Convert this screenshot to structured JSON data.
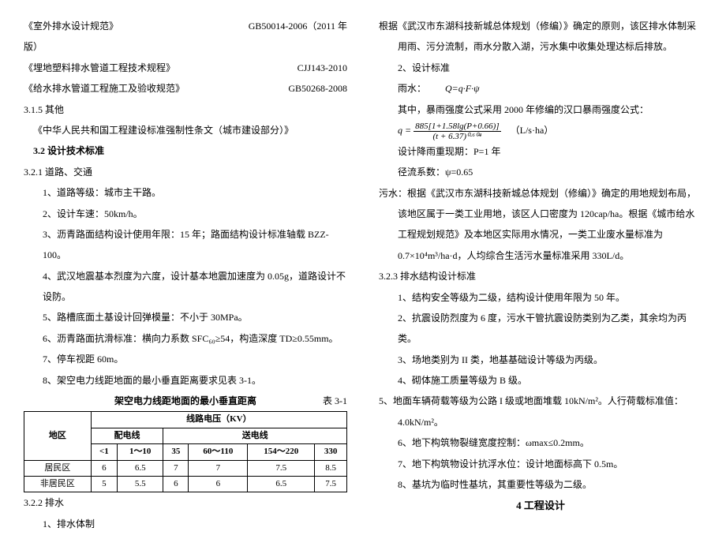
{
  "left": {
    "codes": [
      {
        "name": "《室外排水设计规范》",
        "num": "GB50014-2006（2011 年"
      },
      {
        "name": "版）",
        "num": ""
      },
      {
        "name": "《埋地塑料排水管道工程技术规程》",
        "num": "CJJ143-2010"
      },
      {
        "name": "《给水排水管道工程施工及验收规范》",
        "num": "GB50268-2008"
      }
    ],
    "s315": "3.1.5 其他",
    "s315_item": "《中华人民共和国工程建设标准强制性条文（城市建设部分）》",
    "s32": "3.2 设计技术标准",
    "s321": "3.2.1 道路、交通",
    "road_items": [
      "1、道路等级：城市主干路。",
      "2、设计车速：50km/h。",
      "3、沥青路面结构设计使用年限：15 年；路面结构设计标准轴载 BZZ-100。",
      "4、武汉地震基本烈度为六度，设计基本地震加速度为 0.05g，道路设计不设防。",
      "5、路槽底面土基设计回弹模量：不小于 30MPa。",
      "6、沥青路面抗滑标准：横向力系数 SFC₆₀≥54，构造深度 TD≥0.55mm。",
      "7、停车视距 60m。",
      "8、架空电力线距地面的最小垂直距离要求见表 3-1。"
    ],
    "table_title": "架空电力线距地面的最小垂直距离",
    "table_num": "表 3-1",
    "table": {
      "header_top": "线路电压（KV）",
      "region": "地区",
      "sub1": "配电线",
      "sub2": "送电线",
      "cols": [
        "<1",
        "1～10",
        "35",
        "60～110",
        "154～220",
        "330"
      ],
      "rows": [
        {
          "label": "居民区",
          "vals": [
            "6",
            "6.5",
            "7",
            "7",
            "7.5",
            "8.5"
          ]
        },
        {
          "label": "非居民区",
          "vals": [
            "5",
            "5.5",
            "6",
            "6",
            "6.5",
            "7.5"
          ]
        }
      ]
    },
    "s322": "3.2.2 排水",
    "s322_1": "1、排水体制"
  },
  "right": {
    "p1": "根据《武汉市东湖科技新城总体规划（修编）》确定的原则，该区排水体制采用雨、污分流制，雨水分散入湖，污水集中收集处理达标后排放。",
    "p2": "2、设计标准",
    "rain_label": "雨水：",
    "rain_formula": "Q=q·F·ψ",
    "p3": "其中，暴雨强度公式采用 2000 年修编的汉口暴雨强度公式：",
    "frac_num": "885[1+1.58lg(P+0.66)]",
    "frac_den": "(t + 6.37)⁰·⁶⁰⁴",
    "q_eq": "q =",
    "unit": "（L/s·ha）",
    "p4": "设计降雨重现期：P=1 年",
    "p5": "径流系数：ψ=0.65",
    "p6": "污水：根据《武汉市东湖科技新城总体规划（修编）》确定的用地规划布局，该地区属于一类工业用地，该区人口密度为 120cap/ha。根据《城市给水工程规划规范》及本地区实际用水情况，一类工业废水量标准为 0.7×10⁴m³/ha·d，人均综合生活污水量标准采用 330L/d。",
    "s323": "3.2.3 排水结构设计标准",
    "struct_items_a": [
      "1、结构安全等级为二级，结构设计使用年限为 50 年。",
      "2、抗震设防烈度为 6 度，污水干管抗震设防类别为乙类，其余均为丙类。",
      "3、场地类别为 II 类，地基基础设计等级为丙级。",
      "4、砌体施工质量等级为 B 级。"
    ],
    "item5": "5、地面车辆荷载等级为公路 I 级或地面堆载 10kN/m²。人行荷载标准值：4.0kN/m²。",
    "item6": "6、地下构筑物裂缝宽度控制：ωmax≤0.2mm。",
    "item7": "7、地下构筑物设计抗浮水位：设计地面标高下 0.5m。",
    "item8": "8、基坑为临时性基坑，其重要性等级为二级。",
    "s4": "4 工程设计"
  }
}
